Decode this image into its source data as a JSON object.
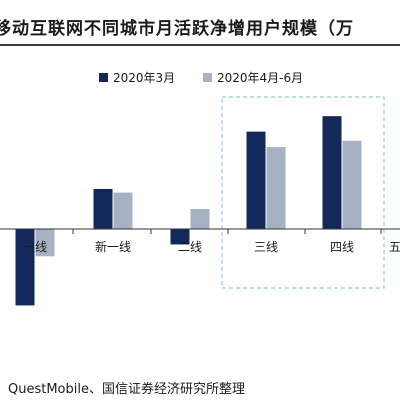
{
  "header": {
    "title": "移动互联网不同城市月活跃净增用户规模（万"
  },
  "footer": {
    "source": "QuestMobile、国信证券经济研究所整理"
  },
  "colors": {
    "series1": "#13275a",
    "series2": "#a6b2c4",
    "highlight_box": "#9dc3e6",
    "axis": "#333333"
  },
  "chart_data": {
    "type": "bar",
    "categories": [
      "一线",
      "新一线",
      "二线",
      "三线",
      "四线",
      "五"
    ],
    "series": [
      {
        "name": "2020年3月",
        "values": [
          -84,
          44,
          -17,
          107,
          124,
          null
        ]
      },
      {
        "name": "2020年4月-6月",
        "values": [
          -30,
          40,
          22,
          90,
          97,
          null
        ]
      }
    ],
    "ylim": [
      -85,
      125
    ],
    "grid": false,
    "legend_position": "top",
    "highlight_categories": [
      "三线",
      "四线"
    ]
  }
}
